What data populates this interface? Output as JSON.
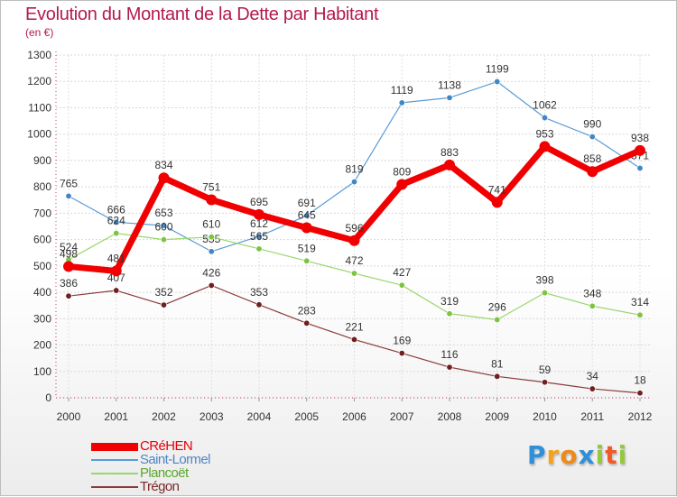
{
  "chart_data": {
    "type": "line",
    "title": "Evolution du Montant de la Dette par Habitant",
    "subtitle": "(en €)",
    "x": [
      "2000",
      "2001",
      "2002",
      "2003",
      "2004",
      "2005",
      "2006",
      "2007",
      "2008",
      "2009",
      "2010",
      "2011",
      "2012"
    ],
    "ylim": [
      0,
      1300
    ],
    "yticks": [
      0,
      100,
      200,
      300,
      400,
      500,
      600,
      700,
      800,
      900,
      1000,
      1100,
      1200,
      1300
    ],
    "grid": true,
    "legend_position": "bottom-left",
    "series": [
      {
        "name": "Saint-Lormel",
        "color": "#5b9bd5",
        "marker_color": "#3f86c4",
        "width": 1.2,
        "values": [
          765,
          666,
          653,
          555,
          612,
          691,
          819,
          1119,
          1138,
          1199,
          1062,
          990,
          871
        ],
        "labels": [
          "765",
          "666",
          "653",
          "555",
          "612",
          "691",
          "819",
          "1119",
          "1138",
          "1199",
          "1062",
          "990",
          "871"
        ]
      },
      {
        "name": "Plancoët",
        "color": "#99d66b",
        "marker_color": "#7cc43f",
        "width": 1.2,
        "values": [
          524,
          624,
          600,
          610,
          565,
          519,
          472,
          427,
          319,
          296,
          398,
          348,
          314
        ],
        "labels": [
          "524",
          "624",
          "600",
          "610",
          "565",
          "519",
          "472",
          "427",
          "319",
          "296",
          "398",
          "348",
          "314"
        ]
      },
      {
        "name": "Trégon",
        "color": "#8b3a3a",
        "marker_color": "#6e1f1f",
        "width": 1.2,
        "values": [
          386,
          407,
          352,
          426,
          353,
          283,
          221,
          169,
          116,
          81,
          59,
          34,
          18
        ],
        "labels": [
          "386",
          "407",
          "352",
          "426",
          "353",
          "283",
          "221",
          "169",
          "116",
          "81",
          "59",
          "34",
          "18"
        ]
      },
      {
        "name": "CRéHEN",
        "color": "#f00000",
        "marker_color": "#f00000",
        "width": 7,
        "values": [
          498,
          481,
          834,
          751,
          695,
          645,
          596,
          809,
          883,
          741,
          953,
          858,
          938
        ],
        "labels": [
          "498",
          "481",
          "834",
          "751",
          "695",
          "645",
          "596",
          "809",
          "883",
          "741",
          "953",
          "858",
          "938"
        ]
      }
    ]
  },
  "legend": [
    {
      "name": "CRéHEN",
      "color": "#f00000",
      "label_color": "#e8000b"
    },
    {
      "name": "Saint-Lormel",
      "color": "#5b9bd5",
      "label_color": "#4f86c6"
    },
    {
      "name": "Plancoët",
      "color": "#99d66b",
      "label_color": "#5aa62a"
    },
    {
      "name": "Trégon",
      "color": "#8b3a3a",
      "label_color": "#7a2a2a"
    }
  ],
  "logo": {
    "letters": [
      "P",
      "r",
      "o",
      "x",
      "i",
      "t",
      "i"
    ],
    "colors": [
      "#2f8fd8",
      "#f5a21b",
      "#f08a16",
      "#2f8fd8",
      "#94c83d",
      "#f05a28",
      "#94c83d"
    ]
  }
}
